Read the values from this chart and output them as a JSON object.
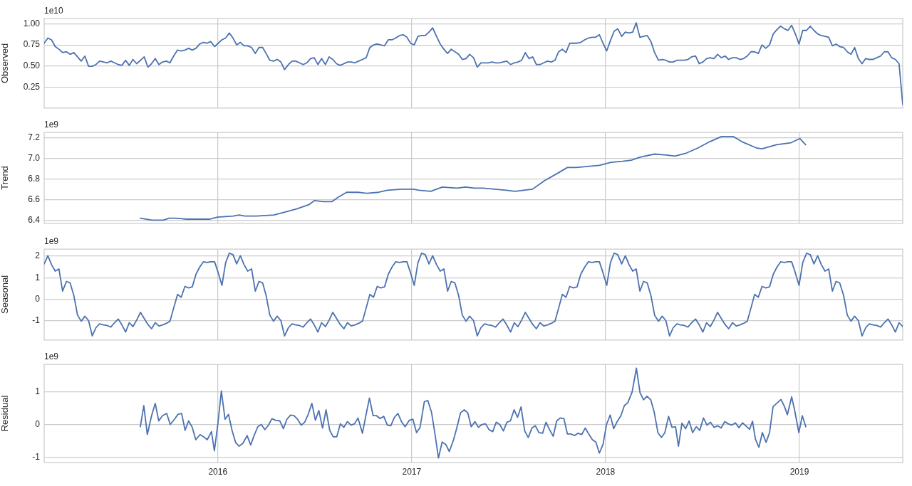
{
  "chart_data": [
    {
      "type": "line",
      "ylabel": "Observed",
      "annotations": [
        "1e10"
      ],
      "color": "#4c72b0",
      "grid": true,
      "tick_labels": "y",
      "xlim": [
        2015.104,
        2019.533
      ],
      "xticks": [
        2016,
        2017,
        2018,
        2019
      ],
      "ylim": [
        0.01,
        1.06
      ],
      "yticks": [
        0.25,
        {
          "value": 0.5,
          "label": "0.50"
        },
        0.75,
        {
          "value": 1,
          "label": "1.00"
        }
      ],
      "x": [
        2015.104,
        2015.123,
        2015.142,
        2015.161,
        2015.18,
        2015.199,
        2015.219,
        2015.238,
        2015.257,
        2015.276,
        2015.295,
        2015.314,
        2015.333,
        2015.352,
        2015.371,
        2015.39,
        2015.41,
        2015.429,
        2015.448,
        2015.467,
        2015.486,
        2015.505,
        2015.524,
        2015.543,
        2015.562,
        2015.581,
        2015.601,
        2015.62,
        2015.639,
        2015.658,
        2015.677,
        2015.696,
        2015.715,
        2015.734,
        2015.753,
        2015.772,
        2015.792,
        2015.811,
        2015.83,
        2015.849,
        2015.868,
        2015.887,
        2015.906,
        2015.925,
        2015.944,
        2015.963,
        2015.983,
        2016.002,
        2016.021,
        2016.04,
        2016.059,
        2016.078,
        2016.097,
        2016.116,
        2016.135,
        2016.154,
        2016.174,
        2016.193,
        2016.212,
        2016.231,
        2016.249,
        2016.268,
        2016.287,
        2016.306,
        2016.325,
        2016.344,
        2016.364,
        2016.383,
        2016.402,
        2016.421,
        2016.44,
        2016.459,
        2016.478,
        2016.497,
        2016.516,
        2016.535,
        2016.555,
        2016.574,
        2016.593,
        2016.612,
        2016.631,
        2016.65,
        2016.669,
        2016.688,
        2016.707,
        2016.726,
        2016.746,
        2016.765,
        2016.784,
        2016.803,
        2016.822,
        2016.841,
        2016.86,
        2016.879,
        2016.898,
        2016.917,
        2016.937,
        2016.956,
        2016.975,
        2016.994,
        2017.013,
        2017.032,
        2017.051,
        2017.07,
        2017.089,
        2017.108,
        2017.128,
        2017.147,
        2017.166,
        2017.185,
        2017.204,
        2017.223,
        2017.242,
        2017.261,
        2017.28,
        2017.299,
        2017.319,
        2017.338,
        2017.357,
        2017.376,
        2017.395,
        2017.414,
        2017.433,
        2017.452,
        2017.471,
        2017.49,
        2017.51,
        2017.529,
        2017.548,
        2017.567,
        2017.586,
        2017.605,
        2017.624,
        2017.643,
        2017.662,
        2017.681,
        2017.701,
        2017.72,
        2017.739,
        2017.758,
        2017.777,
        2017.796,
        2017.815,
        2017.834,
        2017.853,
        2017.872,
        2017.892,
        2017.911,
        2017.93,
        2017.949,
        2017.968,
        2017.987,
        2018.006,
        2018.025,
        2018.044,
        2018.063,
        2018.083,
        2018.102,
        2018.121,
        2018.14,
        2018.158,
        2018.177,
        2018.196,
        2018.215,
        2018.234,
        2018.253,
        2018.273,
        2018.292,
        2018.311,
        2018.33,
        2018.349,
        2018.368,
        2018.387,
        2018.406,
        2018.425,
        2018.444,
        2018.464,
        2018.483,
        2018.502,
        2018.521,
        2018.54,
        2018.559,
        2018.578,
        2018.597,
        2018.616,
        2018.635,
        2018.655,
        2018.674,
        2018.693,
        2018.712,
        2018.731,
        2018.75,
        2018.769,
        2018.788,
        2018.807,
        2018.826,
        2018.846,
        2018.865,
        2018.884,
        2018.903,
        2018.922,
        2018.941,
        2018.96,
        2018.979,
        2018.998,
        2019.017,
        2019.037,
        2019.056,
        2019.075,
        2019.094,
        2019.113,
        2019.132,
        2019.151,
        2019.17,
        2019.189,
        2019.208,
        2019.228,
        2019.247,
        2019.266,
        2019.285,
        2019.304,
        2019.323,
        2019.342,
        2019.361,
        2019.38,
        2019.399,
        2019.419,
        2019.438,
        2019.457,
        2019.476,
        2019.495,
        2019.514,
        2019.533
      ],
      "values": [
        0.77,
        0.83,
        0.81,
        0.73,
        0.7,
        0.66,
        0.67,
        0.64,
        0.66,
        0.61,
        0.56,
        0.62,
        0.5,
        0.5,
        0.52,
        0.56,
        0.55,
        0.54,
        0.56,
        0.54,
        0.52,
        0.51,
        0.57,
        0.51,
        0.58,
        0.53,
        0.57,
        0.61,
        0.49,
        0.53,
        0.59,
        0.52,
        0.55,
        0.56,
        0.54,
        0.62,
        0.69,
        0.68,
        0.69,
        0.71,
        0.69,
        0.71,
        0.76,
        0.78,
        0.77,
        0.79,
        0.73,
        0.77,
        0.81,
        0.83,
        0.89,
        0.83,
        0.75,
        0.78,
        0.74,
        0.74,
        0.72,
        0.65,
        0.72,
        0.72,
        0.65,
        0.57,
        0.56,
        0.58,
        0.55,
        0.46,
        0.52,
        0.56,
        0.56,
        0.54,
        0.52,
        0.54,
        0.59,
        0.6,
        0.52,
        0.59,
        0.52,
        0.61,
        0.58,
        0.53,
        0.51,
        0.53,
        0.55,
        0.55,
        0.54,
        0.56,
        0.58,
        0.6,
        0.72,
        0.75,
        0.76,
        0.75,
        0.74,
        0.81,
        0.81,
        0.83,
        0.86,
        0.87,
        0.84,
        0.77,
        0.75,
        0.85,
        0.86,
        0.86,
        0.9,
        0.95,
        0.85,
        0.76,
        0.7,
        0.65,
        0.7,
        0.67,
        0.64,
        0.58,
        0.59,
        0.64,
        0.6,
        0.49,
        0.54,
        0.54,
        0.54,
        0.55,
        0.54,
        0.54,
        0.55,
        0.56,
        0.52,
        0.54,
        0.55,
        0.57,
        0.66,
        0.59,
        0.61,
        0.52,
        0.52,
        0.54,
        0.56,
        0.55,
        0.57,
        0.67,
        0.7,
        0.66,
        0.77,
        0.77,
        0.77,
        0.78,
        0.81,
        0.83,
        0.84,
        0.84,
        0.87,
        0.77,
        0.68,
        0.8,
        0.91,
        0.94,
        0.85,
        0.9,
        0.89,
        0.9,
        1.01,
        0.84,
        0.85,
        0.86,
        0.79,
        0.66,
        0.57,
        0.58,
        0.57,
        0.55,
        0.55,
        0.57,
        0.57,
        0.57,
        0.58,
        0.61,
        0.62,
        0.53,
        0.55,
        0.59,
        0.6,
        0.59,
        0.64,
        0.6,
        0.62,
        0.58,
        0.6,
        0.6,
        0.58,
        0.59,
        0.62,
        0.67,
        0.67,
        0.65,
        0.75,
        0.71,
        0.75,
        0.88,
        0.93,
        0.97,
        0.94,
        0.92,
        0.98,
        0.88,
        0.76,
        0.92,
        0.92,
        0.97,
        0.92,
        0.88,
        0.86,
        0.85,
        0.84,
        0.74,
        0.76,
        0.73,
        0.72,
        0.67,
        0.64,
        0.72,
        0.59,
        0.53,
        0.59,
        0.58,
        0.58,
        0.6,
        0.62,
        0.67,
        0.67,
        0.6,
        0.58,
        0.53,
        0.05
      ]
    },
    {
      "type": "line",
      "ylabel": "Trend",
      "annotations": [
        "1e9"
      ],
      "color": "#4c72b0",
      "grid": true,
      "tick_labels": "y",
      "xlim": [
        2015.104,
        2019.533
      ],
      "xticks": [
        2016,
        2017,
        2018,
        2019
      ],
      "ylim": [
        6.37,
        7.25
      ],
      "yticks": [
        6.4,
        6.6,
        6.8,
        {
          "value": 7,
          "label": "7.0"
        },
        7.2
      ],
      "x": [
        2015.6,
        2015.66,
        2015.719,
        2015.749,
        2015.779,
        2015.839,
        2015.899,
        2015.959,
        2015.998,
        2016.079,
        2016.109,
        2016.139,
        2016.199,
        2016.289,
        2016.349,
        2016.409,
        2016.469,
        2016.499,
        2016.544,
        2016.589,
        2016.619,
        2016.664,
        2016.724,
        2016.769,
        2016.829,
        2016.874,
        2016.948,
        2017.008,
        2017.038,
        2017.098,
        2017.158,
        2017.233,
        2017.278,
        2017.323,
        2017.368,
        2017.428,
        2017.488,
        2017.533,
        2017.578,
        2017.623,
        2017.683,
        2017.758,
        2017.803,
        2017.848,
        2017.908,
        2017.968,
        2018.028,
        2018.088,
        2018.133,
        2018.178,
        2018.253,
        2018.313,
        2018.358,
        2018.418,
        2018.478,
        2018.538,
        2018.598,
        2018.658,
        2018.703,
        2018.777,
        2018.807,
        2018.882,
        2018.957,
        2019.002,
        2019.032
      ],
      "values": [
        6.42,
        6.4,
        6.4,
        6.42,
        6.42,
        6.41,
        6.41,
        6.41,
        6.43,
        6.44,
        6.45,
        6.44,
        6.44,
        6.45,
        6.48,
        6.51,
        6.55,
        6.59,
        6.58,
        6.58,
        6.62,
        6.67,
        6.67,
        6.66,
        6.67,
        6.69,
        6.7,
        6.7,
        6.69,
        6.68,
        6.72,
        6.71,
        6.72,
        6.71,
        6.71,
        6.7,
        6.69,
        6.68,
        6.69,
        6.7,
        6.78,
        6.86,
        6.91,
        6.91,
        6.92,
        6.93,
        6.96,
        6.97,
        6.98,
        7.01,
        7.04,
        7.03,
        7.02,
        7.05,
        7.1,
        7.16,
        7.21,
        7.21,
        7.16,
        7.1,
        7.09,
        7.13,
        7.15,
        7.19,
        7.13
      ]
    },
    {
      "type": "line",
      "ylabel": "Seasonal",
      "annotations": [
        "1e9"
      ],
      "color": "#4c72b0",
      "grid": true,
      "tick_labels": "y",
      "xlim": [
        2015.104,
        2019.533
      ],
      "xticks": [
        2016,
        2017,
        2018,
        2019
      ],
      "ylim": [
        -1.88,
        2.33
      ],
      "yticks": [
        -1,
        0,
        1,
        2
      ],
      "x": [
        2015.104,
        2015.123,
        2015.142,
        2015.161,
        2015.18,
        2015.199,
        2015.219,
        2015.238,
        2015.257,
        2015.276,
        2015.295,
        2015.314,
        2015.333,
        2015.352,
        2015.371,
        2015.39,
        2015.41,
        2015.429,
        2015.448,
        2015.467,
        2015.486,
        2015.505,
        2015.524,
        2015.543,
        2015.562,
        2015.581,
        2015.601,
        2015.62,
        2015.639,
        2015.658,
        2015.677,
        2015.696,
        2015.715,
        2015.734,
        2015.753,
        2015.772,
        2015.792,
        2015.811,
        2015.83,
        2015.849,
        2015.868,
        2015.887,
        2015.906,
        2015.925,
        2015.944,
        2015.963,
        2015.983,
        2016.002,
        2016.021,
        2016.04,
        2016.059,
        2016.078,
        2016.097,
        2016.116,
        2016.135,
        2016.154,
        2016.174,
        2016.193,
        2016.212,
        2016.231,
        2016.249,
        2016.268,
        2016.287,
        2016.306,
        2016.325,
        2016.344,
        2016.364,
        2016.383,
        2016.402,
        2016.421,
        2016.44,
        2016.459,
        2016.478,
        2016.497,
        2016.516,
        2016.535,
        2016.555,
        2016.574,
        2016.593,
        2016.612,
        2016.631,
        2016.65,
        2016.669,
        2016.688,
        2016.707,
        2016.726,
        2016.746,
        2016.765,
        2016.784,
        2016.803,
        2016.822,
        2016.841,
        2016.86,
        2016.879,
        2016.898,
        2016.917,
        2016.937,
        2016.956,
        2016.975,
        2016.994,
        2017.013,
        2017.032,
        2017.051,
        2017.07,
        2017.089,
        2017.108,
        2017.128,
        2017.147,
        2017.166,
        2017.185,
        2017.204,
        2017.223,
        2017.242,
        2017.261,
        2017.28,
        2017.299,
        2017.319,
        2017.338,
        2017.357,
        2017.376,
        2017.395,
        2017.414,
        2017.433,
        2017.452,
        2017.471,
        2017.49,
        2017.51,
        2017.529,
        2017.548,
        2017.567,
        2017.586,
        2017.605,
        2017.624,
        2017.643,
        2017.662,
        2017.681,
        2017.701,
        2017.72,
        2017.739,
        2017.758,
        2017.777,
        2017.796,
        2017.815,
        2017.834,
        2017.853,
        2017.872,
        2017.892,
        2017.911,
        2017.93,
        2017.949,
        2017.968,
        2017.987,
        2018.006,
        2018.025,
        2018.044,
        2018.063,
        2018.083,
        2018.102,
        2018.121,
        2018.14,
        2018.158,
        2018.177,
        2018.196,
        2018.215,
        2018.234,
        2018.253,
        2018.273,
        2018.292,
        2018.311,
        2018.33,
        2018.349,
        2018.368,
        2018.387,
        2018.406,
        2018.425,
        2018.444,
        2018.464,
        2018.483,
        2018.502,
        2018.521,
        2018.54,
        2018.559,
        2018.578,
        2018.597,
        2018.616,
        2018.635,
        2018.655,
        2018.674,
        2018.693,
        2018.712,
        2018.731,
        2018.75,
        2018.769,
        2018.788,
        2018.807,
        2018.826,
        2018.846,
        2018.865,
        2018.884,
        2018.903,
        2018.922,
        2018.941,
        2018.96,
        2018.979,
        2018.998,
        2019.017,
        2019.037,
        2019.056,
        2019.075,
        2019.094,
        2019.113,
        2019.132,
        2019.151,
        2019.17,
        2019.189,
        2019.208,
        2019.228,
        2019.247,
        2019.266,
        2019.285,
        2019.304,
        2019.323,
        2019.342,
        2019.361,
        2019.38,
        2019.399,
        2019.419,
        2019.438,
        2019.457,
        2019.476,
        2019.495,
        2019.514,
        2019.533
      ],
      "values": [
        1.64,
        2.02,
        1.61,
        1.31,
        1.41,
        0.38,
        0.83,
        0.76,
        0.18,
        -0.73,
        -1.01,
        -0.78,
        -0.98,
        -1.69,
        -1.31,
        -1.13,
        -1.18,
        -1.21,
        -1.28,
        -1.08,
        -0.91,
        -1.18,
        -1.51,
        -1.08,
        -1.26,
        -0.96,
        -0.6,
        -0.88,
        -1.16,
        -1.36,
        -1.08,
        -1.23,
        -1.18,
        -1.11,
        -1.01,
        -0.4,
        0.23,
        0.1,
        0.6,
        0.53,
        0.58,
        1.16,
        1.49,
        1.74,
        1.71,
        1.74,
        1.74,
        1.23,
        0.65,
        1.69,
        2.14,
        2.07,
        1.64,
        2.02,
        1.61,
        1.31,
        1.41,
        0.38,
        0.83,
        0.76,
        0.18,
        -0.73,
        -1.01,
        -0.78,
        -0.98,
        -1.69,
        -1.31,
        -1.13,
        -1.18,
        -1.21,
        -1.28,
        -1.08,
        -0.91,
        -1.18,
        -1.51,
        -1.08,
        -1.26,
        -0.96,
        -0.6,
        -0.88,
        -1.16,
        -1.36,
        -1.08,
        -1.23,
        -1.18,
        -1.11,
        -1.01,
        -0.4,
        0.23,
        0.1,
        0.6,
        0.53,
        0.58,
        1.16,
        1.49,
        1.74,
        1.71,
        1.74,
        1.74,
        1.23,
        0.65,
        1.69,
        2.14,
        2.07,
        1.64,
        2.02,
        1.61,
        1.31,
        1.41,
        0.38,
        0.83,
        0.76,
        0.18,
        -0.73,
        -1.01,
        -0.78,
        -0.98,
        -1.69,
        -1.31,
        -1.13,
        -1.18,
        -1.21,
        -1.28,
        -1.08,
        -0.91,
        -1.18,
        -1.51,
        -1.08,
        -1.26,
        -0.96,
        -0.6,
        -0.88,
        -1.16,
        -1.36,
        -1.08,
        -1.23,
        -1.18,
        -1.11,
        -1.01,
        -0.4,
        0.23,
        0.1,
        0.6,
        0.53,
        0.58,
        1.16,
        1.49,
        1.74,
        1.71,
        1.74,
        1.74,
        1.23,
        0.65,
        1.69,
        2.14,
        2.07,
        1.64,
        2.02,
        1.61,
        1.31,
        1.41,
        0.38,
        0.83,
        0.76,
        0.18,
        -0.73,
        -1.01,
        -0.78,
        -0.98,
        -1.69,
        -1.31,
        -1.13,
        -1.18,
        -1.21,
        -1.28,
        -1.08,
        -0.91,
        -1.18,
        -1.51,
        -1.08,
        -1.26,
        -0.96,
        -0.6,
        -0.88,
        -1.16,
        -1.36,
        -1.08,
        -1.23,
        -1.18,
        -1.11,
        -1.01,
        -0.4,
        0.23,
        0.1,
        0.6,
        0.53,
        0.58,
        1.16,
        1.49,
        1.74,
        1.71,
        1.74,
        1.74,
        1.23,
        0.65,
        1.69,
        2.14,
        2.07,
        1.64,
        2.02,
        1.61,
        1.31,
        1.41,
        0.38,
        0.83,
        0.76,
        0.18,
        -0.73,
        -1.01,
        -0.78,
        -0.98,
        -1.69,
        -1.31,
        -1.13,
        -1.18,
        -1.21,
        -1.28,
        -1.08,
        -0.91,
        -1.18,
        -1.51,
        -1.08,
        -1.26
      ]
    },
    {
      "type": "line",
      "ylabel": "Residual",
      "annotations": [
        "1e9"
      ],
      "color": "#4c72b0",
      "grid": true,
      "xlim": [
        2015.104,
        2019.533
      ],
      "xticks": [
        2016,
        2017,
        2018,
        2019
      ],
      "ylim": [
        -1.17,
        1.85
      ],
      "yticks": [
        -1,
        0,
        1
      ],
      "x": [
        2015.6,
        2015.618,
        2015.636,
        2015.658,
        2015.677,
        2015.695,
        2015.714,
        2015.736,
        2015.754,
        2015.776,
        2015.794,
        2015.813,
        2015.831,
        2015.849,
        2015.868,
        2015.886,
        2015.908,
        2015.927,
        2015.945,
        2015.967,
        2015.982,
        2016.0,
        2016.018,
        2016.037,
        2016.055,
        2016.073,
        2016.092,
        2016.11,
        2016.129,
        2016.151,
        2016.169,
        2016.187,
        2016.206,
        2016.224,
        2016.242,
        2016.261,
        2016.279,
        2016.297,
        2016.32,
        2016.338,
        2016.356,
        2016.375,
        2016.393,
        2016.411,
        2016.43,
        2016.448,
        2016.466,
        2016.485,
        2016.503,
        2016.521,
        2016.54,
        2016.558,
        2016.577,
        2016.595,
        2016.613,
        2016.632,
        2016.65,
        2016.668,
        2016.687,
        2016.705,
        2016.723,
        2016.746,
        2016.764,
        2016.782,
        2016.801,
        2016.819,
        2016.837,
        2016.856,
        2016.874,
        2016.892,
        2016.911,
        2016.929,
        2016.947,
        2016.966,
        2016.988,
        2017.006,
        2017.025,
        2017.043,
        2017.065,
        2017.083,
        2017.102,
        2017.12,
        2017.138,
        2017.157,
        2017.175,
        2017.194,
        2017.216,
        2017.234,
        2017.252,
        2017.271,
        2017.289,
        2017.307,
        2017.326,
        2017.344,
        2017.362,
        2017.381,
        2017.399,
        2017.418,
        2017.436,
        2017.454,
        2017.473,
        2017.491,
        2017.509,
        2017.528,
        2017.546,
        2017.564,
        2017.583,
        2017.601,
        2017.62,
        2017.638,
        2017.656,
        2017.675,
        2017.693,
        2017.711,
        2017.73,
        2017.748,
        2017.766,
        2017.785,
        2017.803,
        2017.821,
        2017.84,
        2017.858,
        2017.877,
        2017.895,
        2017.913,
        2017.932,
        2017.95,
        2017.968,
        2017.987,
        2018.005,
        2018.024,
        2018.042,
        2018.06,
        2018.079,
        2018.097,
        2018.115,
        2018.137,
        2018.159,
        2018.178,
        2018.196,
        2018.214,
        2018.233,
        2018.251,
        2018.27,
        2018.288,
        2018.306,
        2018.325,
        2018.343,
        2018.361,
        2018.376,
        2018.394,
        2018.413,
        2018.431,
        2018.449,
        2018.468,
        2018.486,
        2018.505,
        2018.523,
        2018.541,
        2018.56,
        2018.578,
        2018.596,
        2018.615,
        2018.633,
        2018.651,
        2018.67,
        2018.688,
        2018.707,
        2018.725,
        2018.743,
        2018.758,
        2018.773,
        2018.791,
        2018.809,
        2018.828,
        2018.846,
        2018.864,
        2018.883,
        2018.905,
        2018.923,
        2018.938,
        2018.96,
        2018.975,
        2018.997,
        2019.015,
        2019.033
      ],
      "values": [
        -0.07,
        0.58,
        -0.31,
        0.27,
        0.65,
        0.11,
        0.27,
        0.34,
        0.0,
        0.16,
        0.31,
        0.34,
        -0.18,
        0.11,
        -0.09,
        -0.47,
        -0.31,
        -0.38,
        -0.47,
        -0.22,
        -0.81,
        0.02,
        1.03,
        0.16,
        0.31,
        -0.18,
        -0.56,
        -0.67,
        -0.58,
        -0.34,
        -0.63,
        -0.34,
        -0.07,
        0.0,
        -0.16,
        -0.02,
        0.18,
        0.13,
        0.11,
        -0.13,
        0.16,
        0.29,
        0.27,
        0.16,
        -0.02,
        0.07,
        0.31,
        0.65,
        0.13,
        0.43,
        -0.11,
        0.45,
        -0.18,
        -0.38,
        -0.38,
        0.02,
        -0.09,
        0.09,
        -0.02,
        0.02,
        0.2,
        -0.27,
        0.29,
        0.81,
        0.27,
        0.27,
        0.18,
        0.25,
        -0.02,
        -0.04,
        0.22,
        0.34,
        0.09,
        -0.07,
        0.13,
        0.16,
        -0.25,
        -0.09,
        0.7,
        0.74,
        0.38,
        -0.29,
        -1.03,
        -0.54,
        -0.61,
        -0.83,
        -0.47,
        -0.07,
        0.36,
        0.45,
        0.36,
        -0.07,
        0.09,
        -0.09,
        0.0,
        0.02,
        -0.16,
        -0.22,
        0.07,
        0.0,
        -0.2,
        0.07,
        0.11,
        0.45,
        0.22,
        0.54,
        -0.2,
        -0.4,
        -0.11,
        -0.04,
        -0.25,
        -0.27,
        0.07,
        -0.16,
        -0.36,
        0.11,
        0.2,
        0.18,
        -0.29,
        -0.29,
        -0.34,
        -0.27,
        -0.31,
        -0.11,
        -0.29,
        -0.47,
        -0.54,
        -0.88,
        -0.61,
        0.0,
        0.29,
        -0.13,
        0.09,
        0.27,
        0.58,
        0.67,
        1.0,
        1.73,
        0.97,
        0.76,
        0.87,
        0.76,
        0.38,
        -0.25,
        -0.4,
        -0.25,
        0.25,
        -0.09,
        -0.07,
        -0.67,
        0.04,
        -0.13,
        0.11,
        -0.25,
        -0.07,
        -0.18,
        0.2,
        -0.02,
        0.07,
        -0.09,
        -0.04,
        -0.11,
        0.09,
        0.02,
        -0.02,
        0.05,
        -0.1,
        0.05,
        -0.05,
        -0.15,
        0.1,
        -0.45,
        -0.7,
        -0.25,
        -0.55,
        -0.25,
        0.55,
        0.65,
        0.77,
        0.55,
        0.3,
        0.85,
        0.45,
        -0.25,
        0.27,
        -0.07
      ]
    }
  ]
}
